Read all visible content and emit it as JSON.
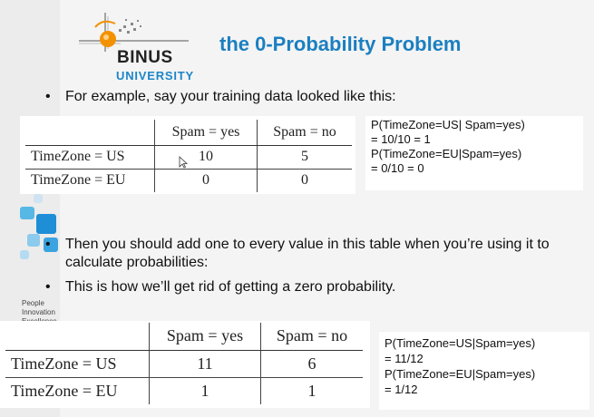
{
  "logo": {
    "word": "BINUS",
    "sub": "UNIVERSITY"
  },
  "title": "the 0-Probability Problem",
  "bullets": [
    "For example, say your training data looked like this:",
    "Then you should add one to every value in this table when you’re using it to calculate probabilities:",
    "This is how we’ll get rid of getting a zero probability."
  ],
  "people_text": "People Innovation Excellence",
  "table1": {
    "headers": [
      "Spam = yes",
      "Spam = no"
    ],
    "rows": [
      {
        "label": "TimeZone = US",
        "values": [
          "10",
          "5"
        ]
      },
      {
        "label": "TimeZone = EU",
        "values": [
          "0",
          "0"
        ]
      }
    ]
  },
  "probs1": [
    "P(TimeZone=US| Spam=yes)",
    "= 10/10 = 1",
    "P(TimeZone=EU|Spam=yes)",
    "= 0/10 = 0"
  ],
  "table2": {
    "headers": [
      "Spam = yes",
      "Spam = no"
    ],
    "rows": [
      {
        "label": "TimeZone = US",
        "values": [
          "11",
          "6"
        ]
      },
      {
        "label": "TimeZone = EU",
        "values": [
          "1",
          "1"
        ]
      }
    ]
  },
  "probs2": [
    "P(TimeZone=US|Spam=yes)",
    "= 11/12",
    "P(TimeZone=EU|Spam=yes)",
    "= 1/12"
  ],
  "colors": {
    "title": "#1b7fc0",
    "logo_orange": "#f39200",
    "logo_blue": "#1b86c8"
  },
  "icons": [
    "logo-emblem-icon",
    "cursor-icon"
  ]
}
